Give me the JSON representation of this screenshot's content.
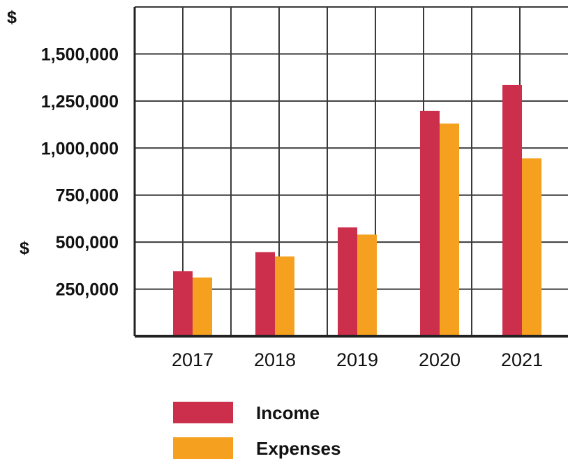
{
  "chart_data": {
    "type": "bar",
    "title": "",
    "xlabel": "",
    "ylabel": "$",
    "y_currency_marker": "$",
    "categories": [
      "2017",
      "2018",
      "2019",
      "2020",
      "2021"
    ],
    "series": [
      {
        "name": "Income",
        "color": "#cc2f4b",
        "values": [
          345000,
          447000,
          578000,
          1198000,
          1335000
        ]
      },
      {
        "name": "Expenses",
        "color": "#f5a11f",
        "values": [
          312000,
          424000,
          540000,
          1130000,
          945000
        ]
      }
    ],
    "yticks": [
      250000,
      500000,
      750000,
      1000000,
      1250000,
      1500000
    ],
    "ytick_labels": [
      "250,000",
      "500,000",
      "750,000",
      "1,000,000",
      "1,250,000",
      "1,500,000"
    ],
    "ylim": [
      0,
      1750000
    ],
    "grid": true,
    "legend_position": "bottom"
  }
}
